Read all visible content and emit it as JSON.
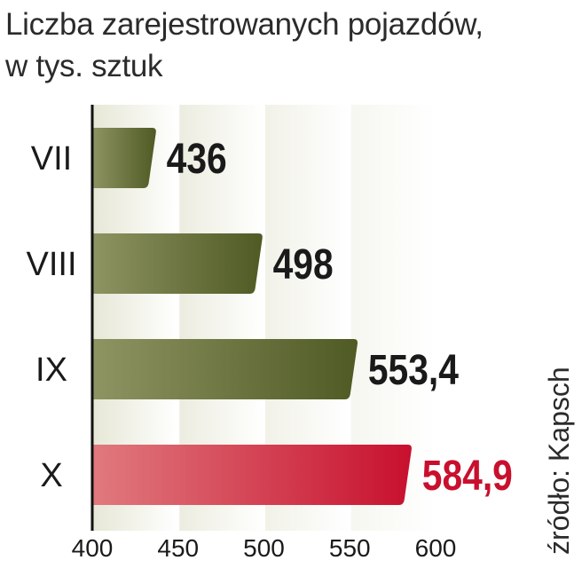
{
  "title_line1": "Liczba zarejestrowanych pojazdów,",
  "title_line2": "w tys. sztuk",
  "source": "źródło: Kapsch",
  "colors": {
    "bar_dark": "#4f5a24",
    "bar_light": "#8e9462",
    "highlight_dark": "#c8102e",
    "highlight_light": "#e07a7e",
    "highlight_label": "#c8102e",
    "label": "#1a1a1a",
    "band": "#e2e3cf"
  },
  "chart_data": {
    "type": "bar",
    "orientation": "horizontal",
    "categories": [
      "VII",
      "VIII",
      "IX",
      "X"
    ],
    "values": [
      436,
      498,
      553.4,
      584.9
    ],
    "value_labels": [
      "436",
      "498",
      "553,4",
      "584,9"
    ],
    "highlight_index": 3,
    "xlim": [
      400,
      600
    ],
    "xticks": [
      "400",
      "450",
      "500",
      "550",
      "600"
    ],
    "xtick_values": [
      400,
      450,
      500,
      550,
      600
    ],
    "grid": true
  }
}
